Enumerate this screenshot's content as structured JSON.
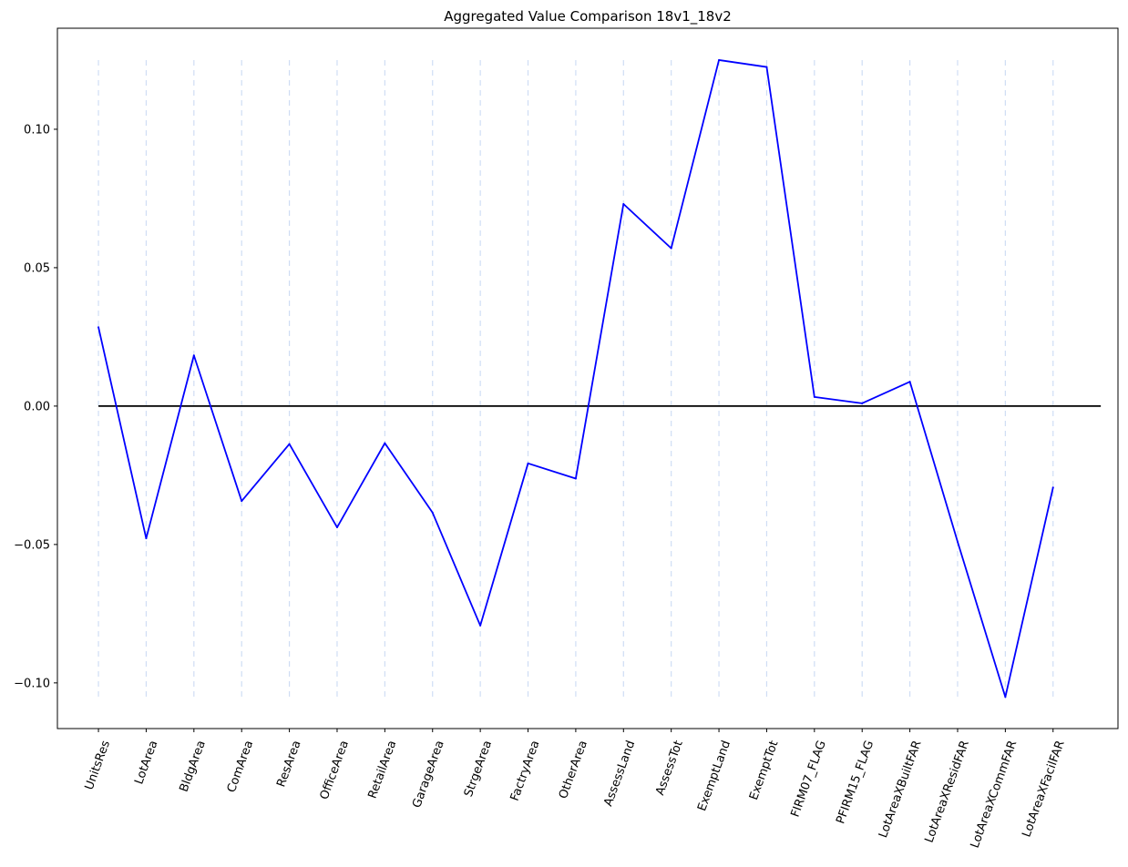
{
  "chart_data": {
    "type": "line",
    "title": "Aggregated Value Comparison 18v1_18v2",
    "xlabel": "",
    "ylabel": "",
    "categories": [
      "UnitsRes",
      "LotArea",
      "BldgArea",
      "ComArea",
      "ResArea",
      "OfficeArea",
      "RetailArea",
      "GarageArea",
      "StrgeArea",
      "FactryArea",
      "OtherArea",
      "AssessLand",
      "AssessTot",
      "ExemptLand",
      "ExemptTot",
      "FIRM07_FLAG",
      "PFIRM15_FLAG",
      "LotAreaXBuiltFAR",
      "LotAreaXResidFAR",
      "LotAreaXCommFAR",
      "LotAreaXFacilFAR"
    ],
    "series": [
      {
        "color": "#0000ff",
        "values": [
          0.0285,
          -0.0478,
          0.0183,
          -0.0343,
          -0.0137,
          -0.0438,
          -0.0134,
          -0.0385,
          -0.0793,
          -0.0207,
          -0.0262,
          0.073,
          0.057,
          0.125,
          0.1225,
          0.0033,
          0.001,
          0.0088,
          -0.049,
          -0.1051,
          -0.0294
        ]
      }
    ],
    "zero_line": {
      "y": 0.0,
      "color": "#000000"
    },
    "vertical_guides": {
      "color": "#b0c8ee",
      "style": "dashed",
      "y_range": [
        -0.105,
        0.125
      ]
    },
    "yticks": [
      -0.1,
      -0.05,
      0.0,
      0.05,
      0.1
    ],
    "ytick_labels": [
      "−0.10",
      "−0.05",
      "0.00",
      "0.05",
      "0.10"
    ],
    "ylim": [
      -0.1165,
      0.1365
    ],
    "xlim": [
      -0.86,
      21.36
    ],
    "x_tick_rotation": 70,
    "grid": false,
    "legend": "none"
  }
}
